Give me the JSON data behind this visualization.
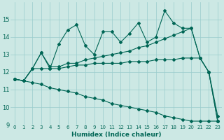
{
  "xlabel": "Humidex (Indice chaleur)",
  "bg_color": "#cce8e4",
  "grid_color": "#99cccc",
  "line_color": "#006655",
  "xlim": [
    -0.5,
    23.5
  ],
  "ylim": [
    9,
    16
  ],
  "yticks": [
    9,
    10,
    11,
    12,
    13,
    14,
    15
  ],
  "xticks": [
    0,
    1,
    2,
    3,
    4,
    5,
    6,
    7,
    8,
    9,
    10,
    11,
    12,
    13,
    14,
    15,
    16,
    17,
    18,
    19,
    20,
    21,
    22,
    23
  ],
  "series": [
    {
      "x": [
        0,
        1,
        2,
        3,
        4,
        5,
        6,
        7,
        8,
        9,
        10,
        11,
        12,
        13,
        14,
        15,
        16,
        17,
        18,
        19,
        20,
        21,
        22,
        23
      ],
      "y": [
        11.6,
        11.5,
        12.2,
        13.1,
        12.2,
        13.6,
        14.4,
        14.7,
        13.5,
        13.0,
        14.3,
        14.3,
        13.7,
        14.2,
        14.8,
        13.7,
        14.0,
        15.5,
        14.8,
        14.5,
        14.5,
        12.8,
        12.0,
        9.2
      ],
      "marker": "D",
      "markersize": 2,
      "linewidth": 0.8
    },
    {
      "x": [
        0,
        1,
        2,
        3,
        4,
        5,
        6,
        7,
        8,
        9,
        10,
        11,
        12,
        13,
        14,
        15,
        16,
        17,
        18,
        19,
        20,
        21,
        22,
        23
      ],
      "y": [
        11.6,
        11.5,
        12.2,
        13.1,
        12.3,
        12.3,
        12.5,
        12.5,
        12.7,
        12.8,
        12.9,
        13.0,
        13.1,
        13.2,
        13.4,
        13.5,
        13.7,
        13.9,
        14.1,
        14.3,
        14.5,
        12.8,
        12.0,
        9.2
      ],
      "marker": "D",
      "markersize": 2,
      "linewidth": 0.8
    },
    {
      "x": [
        0,
        1,
        2,
        3,
        4,
        5,
        6,
        7,
        8,
        9,
        10,
        11,
        12,
        13,
        14,
        15,
        16,
        17,
        18,
        19,
        20,
        21,
        22,
        23
      ],
      "y": [
        11.6,
        11.5,
        12.2,
        12.2,
        12.2,
        12.2,
        12.3,
        12.4,
        12.4,
        12.5,
        12.5,
        12.5,
        12.5,
        12.6,
        12.6,
        12.6,
        12.7,
        12.7,
        12.7,
        12.8,
        12.8,
        12.8,
        12.0,
        9.5
      ],
      "marker": "D",
      "markersize": 2,
      "linewidth": 0.8
    },
    {
      "x": [
        0,
        1,
        2,
        3,
        4,
        5,
        6,
        7,
        8,
        9,
        10,
        11,
        12,
        13,
        14,
        15,
        16,
        17,
        18,
        19,
        20,
        21,
        22,
        23
      ],
      "y": [
        11.6,
        11.5,
        11.4,
        11.3,
        11.1,
        11.0,
        10.9,
        10.8,
        10.6,
        10.5,
        10.4,
        10.2,
        10.1,
        10.0,
        9.9,
        9.8,
        9.7,
        9.5,
        9.4,
        9.3,
        9.2,
        9.2,
        9.2,
        9.2
      ],
      "marker": "D",
      "markersize": 2,
      "linewidth": 0.8
    }
  ]
}
